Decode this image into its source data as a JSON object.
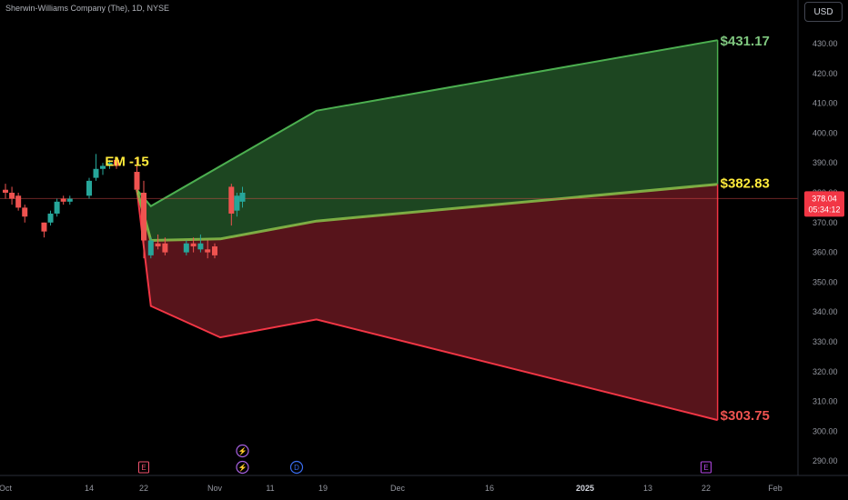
{
  "header": {
    "title": "Sherwin-Williams Company (The), 1D, NYSE",
    "currency": "USD"
  },
  "chart_data": {
    "type": "candlestick",
    "price_axis": {
      "ticks": [
        "430.00",
        "420.00",
        "410.00",
        "400.00",
        "390.00",
        "380.00",
        "370.00",
        "360.00",
        "350.00",
        "340.00",
        "330.00",
        "320.00",
        "310.00",
        "300.00",
        "290.00"
      ],
      "range": [
        286,
        440
      ]
    },
    "time_axis": {
      "ticks": [
        {
          "label": "Oct",
          "date": "2024-10-01"
        },
        {
          "label": "14",
          "date": "2024-10-14"
        },
        {
          "label": "22",
          "date": "2024-10-22"
        },
        {
          "label": "Nov",
          "date": "2024-11-01"
        },
        {
          "label": "11",
          "date": "2024-11-11"
        },
        {
          "label": "19",
          "date": "2024-11-19"
        },
        {
          "label": "Dec",
          "date": "2024-12-02"
        },
        {
          "label": "16",
          "date": "2024-12-16"
        },
        {
          "label": "2025",
          "date": "2025-01-01"
        },
        {
          "label": "13",
          "date": "2025-01-13"
        },
        {
          "label": "22",
          "date": "2025-01-22"
        },
        {
          "label": "Feb",
          "date": "2025-02-03"
        }
      ]
    },
    "candles": [
      {
        "date": "2024-10-01",
        "o": 381,
        "h": 383,
        "l": 378,
        "c": 380
      },
      {
        "date": "2024-10-02",
        "o": 380,
        "h": 382,
        "l": 376,
        "c": 378
      },
      {
        "date": "2024-10-03",
        "o": 379,
        "h": 380,
        "l": 374,
        "c": 375
      },
      {
        "date": "2024-10-04",
        "o": 375,
        "h": 376,
        "l": 370,
        "c": 372
      },
      {
        "date": "2024-10-07",
        "o": 370,
        "h": 370,
        "l": 365,
        "c": 367
      },
      {
        "date": "2024-10-08",
        "o": 370,
        "h": 374,
        "l": 369,
        "c": 373
      },
      {
        "date": "2024-10-09",
        "o": 373,
        "h": 378,
        "l": 372,
        "c": 377
      },
      {
        "date": "2024-10-10",
        "o": 378,
        "h": 379,
        "l": 376,
        "c": 377
      },
      {
        "date": "2024-10-11",
        "o": 377,
        "h": 379,
        "l": 376,
        "c": 378
      },
      {
        "date": "2024-10-14",
        "o": 379,
        "h": 385,
        "l": 378,
        "c": 384
      },
      {
        "date": "2024-10-15",
        "o": 385,
        "h": 393,
        "l": 384,
        "c": 388
      },
      {
        "date": "2024-10-16",
        "o": 388,
        "h": 390,
        "l": 386,
        "c": 389
      },
      {
        "date": "2024-10-17",
        "o": 389,
        "h": 391,
        "l": 388,
        "c": 390
      },
      {
        "date": "2024-10-18",
        "o": 391,
        "h": 392,
        "l": 388,
        "c": 389
      },
      {
        "date": "2024-10-21",
        "o": 387,
        "h": 392,
        "l": 380,
        "c": 381
      },
      {
        "date": "2024-10-22",
        "o": 380,
        "h": 384,
        "l": 358,
        "c": 364
      },
      {
        "date": "2024-10-23",
        "o": 359,
        "h": 365,
        "l": 358,
        "c": 364
      },
      {
        "date": "2024-10-24",
        "o": 363,
        "h": 366,
        "l": 361,
        "c": 362
      },
      {
        "date": "2024-10-25",
        "o": 363,
        "h": 365,
        "l": 359,
        "c": 360
      },
      {
        "date": "2024-10-28",
        "o": 360,
        "h": 364,
        "l": 359,
        "c": 363
      },
      {
        "date": "2024-10-29",
        "o": 363,
        "h": 365,
        "l": 360,
        "c": 362
      },
      {
        "date": "2024-10-30",
        "o": 361,
        "h": 366,
        "l": 360,
        "c": 363
      },
      {
        "date": "2024-10-31",
        "o": 361,
        "h": 364,
        "l": 358,
        "c": 360
      },
      {
        "date": "2024-11-01",
        "o": 362,
        "h": 363,
        "l": 358,
        "c": 359
      },
      {
        "date": "2024-11-04",
        "o": 382,
        "h": 383,
        "l": 369,
        "c": 373
      },
      {
        "date": "2024-11-05",
        "o": 374,
        "h": 380,
        "l": 372,
        "c": 379
      },
      {
        "date": "2024-11-06",
        "o": 377,
        "h": 382,
        "l": 375,
        "c": 380
      }
    ],
    "current_price": {
      "value": 378.04,
      "label": "378.04",
      "countdown": "05:34:12"
    },
    "expected_move": {
      "label": "EM -15",
      "upper": [
        {
          "date": "2024-10-21",
          "v": 381
        },
        {
          "date": "2024-10-23",
          "v": 375.5
        },
        {
          "date": "2024-11-18",
          "v": 407.5
        },
        {
          "date": "2025-01-24",
          "v": 431.17
        }
      ],
      "mid": [
        {
          "date": "2024-10-21",
          "v": 381
        },
        {
          "date": "2024-10-23",
          "v": 364
        },
        {
          "date": "2024-11-02",
          "v": 364.5
        },
        {
          "date": "2024-11-18",
          "v": 370.5
        },
        {
          "date": "2025-01-24",
          "v": 382.83
        }
      ],
      "lower": [
        {
          "date": "2024-10-21",
          "v": 381
        },
        {
          "date": "2024-10-23",
          "v": 342
        },
        {
          "date": "2024-11-02",
          "v": 331.5
        },
        {
          "date": "2024-11-18",
          "v": 337.5
        },
        {
          "date": "2025-01-24",
          "v": 303.75
        }
      ],
      "upper_label": "$431.17",
      "mid_label": "$382.83",
      "lower_label": "$303.75"
    },
    "events": [
      {
        "date": "2024-10-22",
        "glyph": "E",
        "color": "#f0526e"
      },
      {
        "date": "2024-11-06",
        "glyph": "⚡",
        "color": "#a660e0"
      },
      {
        "date": "2024-11-06",
        "glyph": "⚡",
        "color": "#a660e0"
      },
      {
        "date": "2024-11-15",
        "glyph": "D",
        "color": "#3a6df0"
      },
      {
        "date": "2025-01-22",
        "glyph": "E",
        "color": "#b447e6"
      }
    ],
    "colors": {
      "up": "#26a69a",
      "down": "#ef5350",
      "upper_line": "#4caf50",
      "lower_line": "#f23645",
      "mid_line": "#8bc34a",
      "upper_fill": "#1f4a23",
      "lower_fill": "#5c151c",
      "upper_label": "#7fc77f",
      "mid_label": "#ffeb3b",
      "lower_label": "#ef5350"
    }
  }
}
